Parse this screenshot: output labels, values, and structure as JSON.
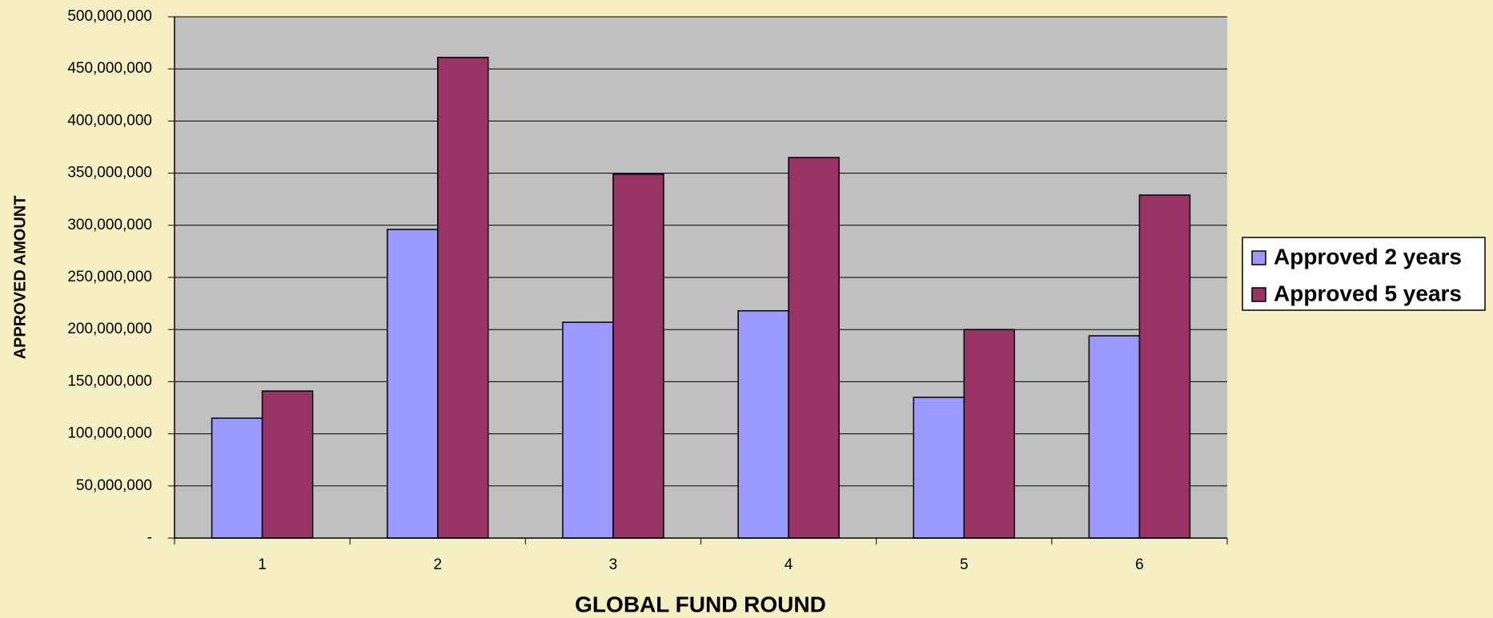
{
  "chart_data": {
    "type": "bar",
    "x_label": "GLOBAL FUND ROUND",
    "y_label": "APPROVED AMOUNT",
    "categories": [
      "1",
      "2",
      "3",
      "4",
      "5",
      "6"
    ],
    "series": [
      {
        "name": "Approved 2 years",
        "color": "#9999ff",
        "values": [
          115000000,
          296000000,
          207000000,
          218000000,
          135000000,
          194000000
        ]
      },
      {
        "name": "Approved 5 years",
        "color": "#993366",
        "values": [
          141000000,
          461000000,
          349000000,
          365000000,
          200000000,
          329000000
        ]
      }
    ],
    "ylim": [
      0,
      500000000
    ],
    "yticks": [
      {
        "value": 0,
        "label": "-"
      },
      {
        "value": 50000000,
        "label": "50,000,000"
      },
      {
        "value": 100000000,
        "label": "100,000,000"
      },
      {
        "value": 150000000,
        "label": "150,000,000"
      },
      {
        "value": 200000000,
        "label": "200,000,000"
      },
      {
        "value": 250000000,
        "label": "250,000,000"
      },
      {
        "value": 300000000,
        "label": "300,000,000"
      },
      {
        "value": 350000000,
        "label": "350,000,000"
      },
      {
        "value": 400000000,
        "label": "400,000,000"
      },
      {
        "value": 450000000,
        "label": "450,000,000"
      },
      {
        "value": 500000000,
        "label": "500,000,000"
      }
    ],
    "grid": true,
    "legend": "right"
  }
}
